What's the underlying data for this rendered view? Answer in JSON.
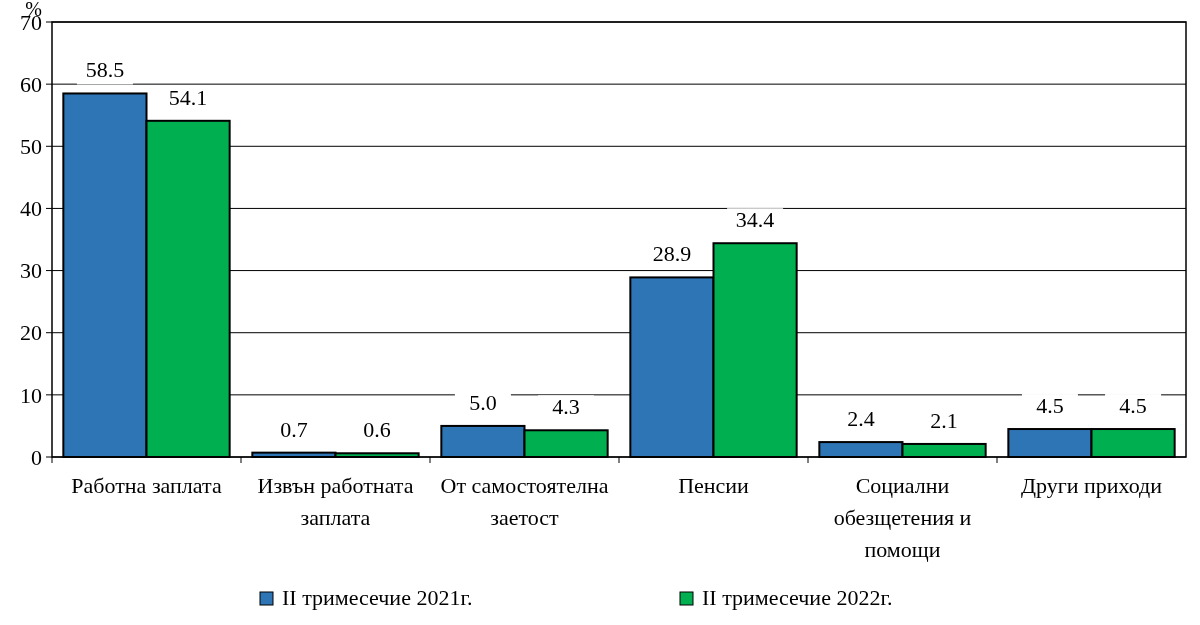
{
  "chart_data": {
    "type": "bar",
    "ylabel": "%",
    "categories": [
      "Работна заплата",
      "Извън работната заплата",
      "От самостоятелна заетост",
      "Пенсии",
      "Социални обезщетения и помощи",
      "Други приходи"
    ],
    "series": [
      {
        "name": "II тримесечие 2021г.",
        "color": "#2e75b6",
        "values": [
          58.5,
          0.7,
          5.0,
          28.9,
          2.4,
          4.5
        ],
        "value_labels": [
          "58.5",
          "0.7",
          "5.0",
          "28.9",
          "2.4",
          "4.5"
        ]
      },
      {
        "name": "II тримесечие 2022г.",
        "color": "#00b050",
        "values": [
          54.1,
          0.6,
          4.3,
          34.4,
          2.1,
          4.5
        ],
        "value_labels": [
          "54.1",
          "0.6",
          "4.3",
          "34.4",
          "2.1",
          "4.5"
        ]
      }
    ],
    "ylim": [
      0,
      70
    ],
    "yticks": [
      0,
      10,
      20,
      30,
      40,
      50,
      60,
      70
    ],
    "grid": "y",
    "legend": "bottom"
  }
}
